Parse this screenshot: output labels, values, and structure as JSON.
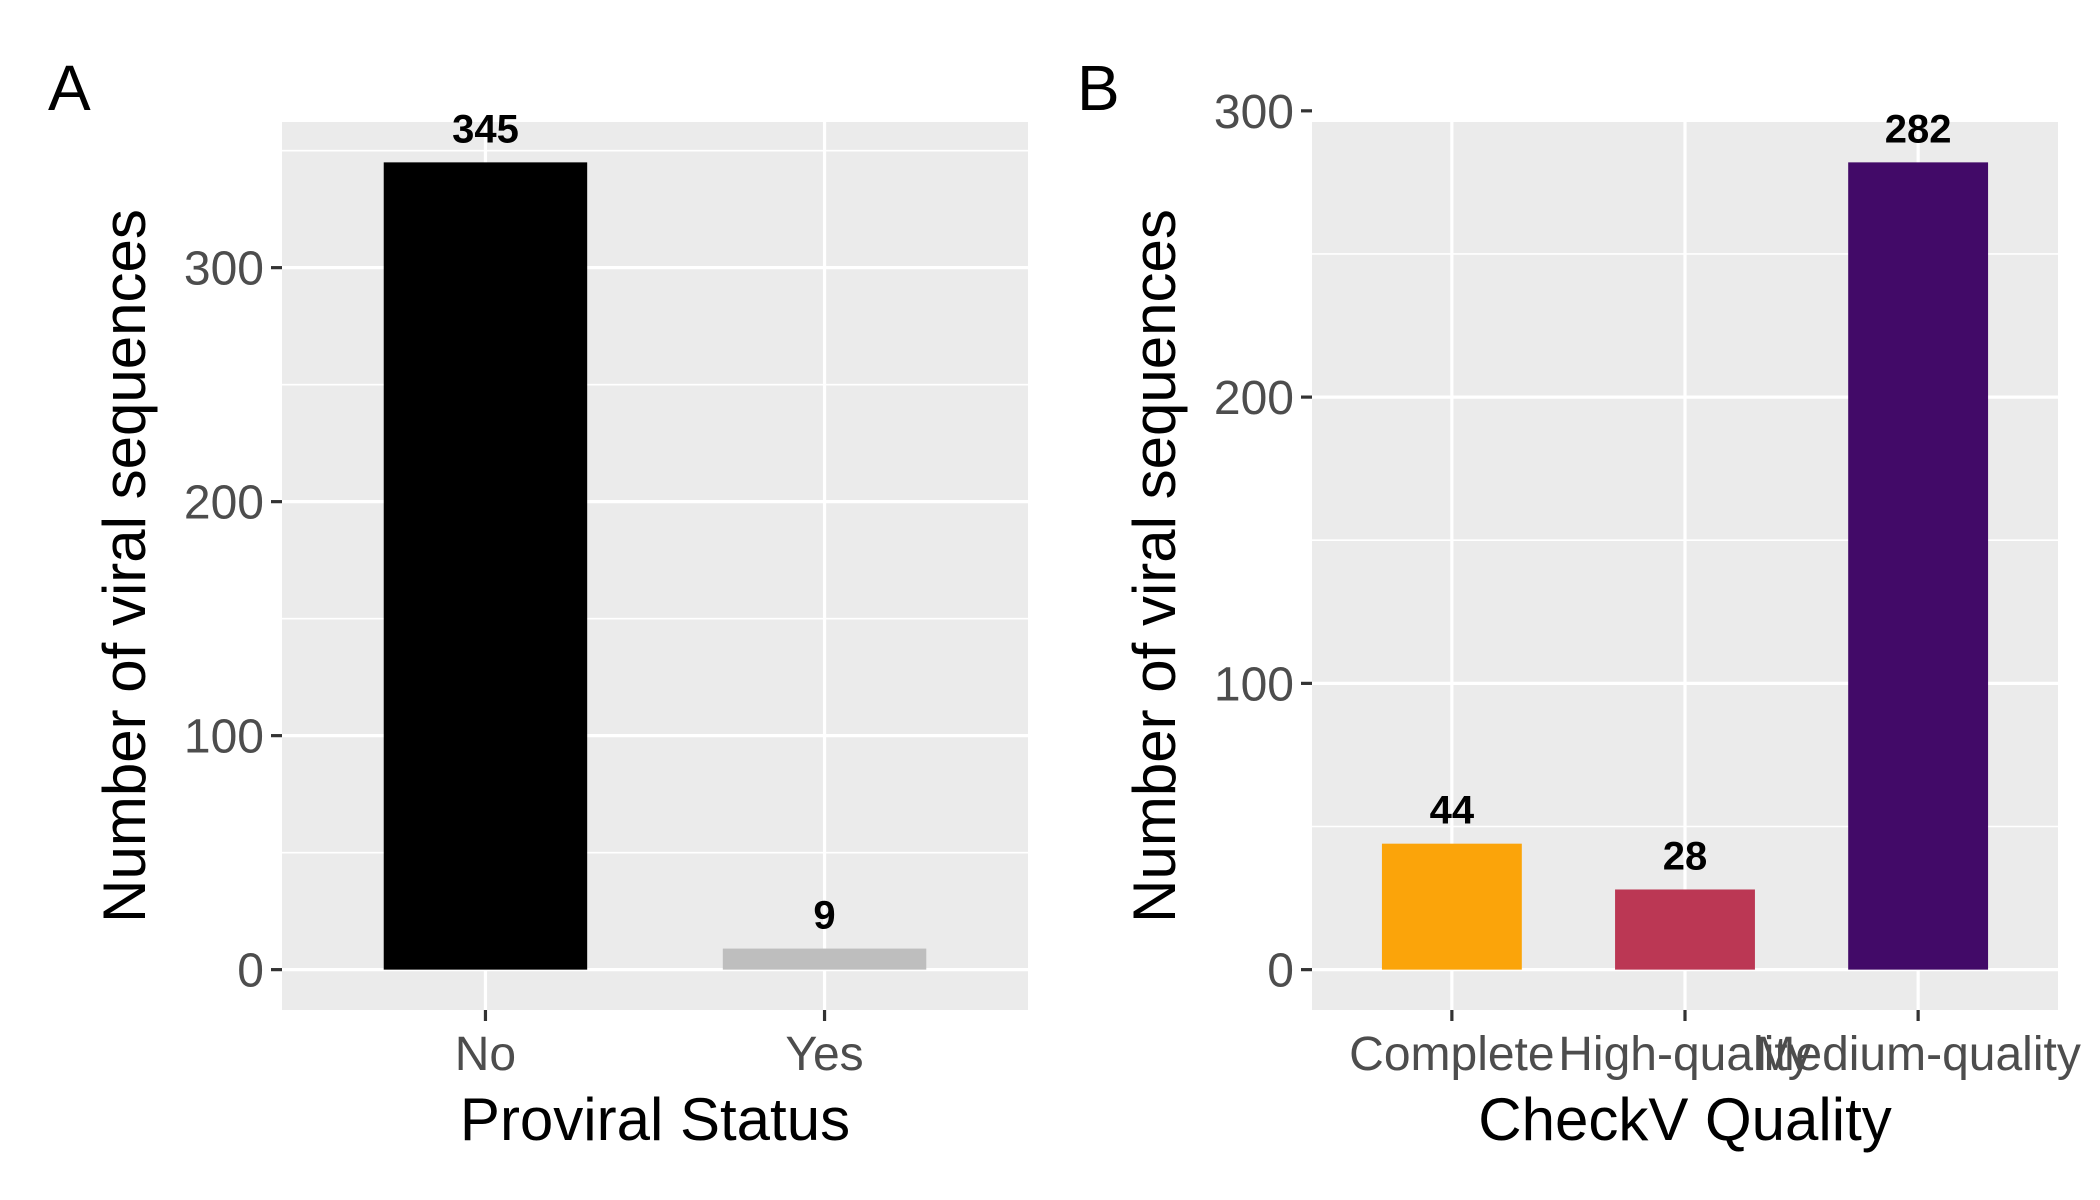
{
  "chart_data": [
    {
      "panel_label": "A",
      "type": "bar",
      "categories": [
        "No",
        "Yes"
      ],
      "values": [
        345,
        9
      ],
      "data_labels": [
        "345",
        "9"
      ],
      "colors": [
        "#000000",
        "#bebebe"
      ],
      "xlabel": "Proviral Status",
      "ylabel": "Number of viral sequences",
      "ylim": [
        -17.25,
        362.25
      ],
      "yticks": [
        0,
        100,
        200,
        300
      ],
      "ytick_labels": [
        "0",
        "100",
        "200",
        "300"
      ],
      "grid": true,
      "legend": "none"
    },
    {
      "panel_label": "B",
      "type": "bar",
      "categories": [
        "Complete",
        "High-quality",
        "Medium-quality"
      ],
      "values": [
        44,
        28,
        282
      ],
      "data_labels": [
        "44",
        "28",
        "282"
      ],
      "colors": [
        "#fba40a",
        "#bb3754",
        "#420a68"
      ],
      "xlabel": "CheckV Quality",
      "ylabel": "Number of viral sequences",
      "ylim": [
        -14.1,
        296.1
      ],
      "yticks": [
        0,
        100,
        200,
        300
      ],
      "ytick_labels": [
        "0",
        "100",
        "200",
        "300"
      ],
      "grid": true,
      "legend": "none"
    }
  ]
}
